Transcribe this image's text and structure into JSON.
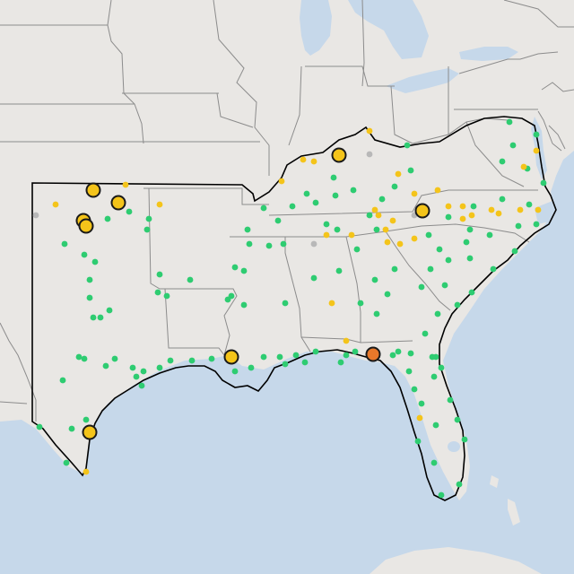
{
  "map": {
    "colors": {
      "land": "#e9e7e4",
      "water": "#c6d8ea",
      "state_border": "#8c8c8c",
      "region_outline": "#000000",
      "marker_outline": "#1a1a1a"
    },
    "categories": [
      {
        "key": "green",
        "color": "#2ecc71"
      },
      {
        "key": "yellow",
        "color": "#f4c41a"
      },
      {
        "key": "gray",
        "color": "#b8b8b8"
      },
      {
        "key": "orange",
        "color": "#e8782a"
      }
    ],
    "small_markers": {
      "green": [
        [
          568,
          136
        ],
        [
          572,
          162
        ],
        [
          598,
          150
        ],
        [
          560,
          180
        ],
        [
          588,
          188
        ],
        [
          606,
          204
        ],
        [
          590,
          228
        ],
        [
          560,
          222
        ],
        [
          528,
          230
        ],
        [
          524,
          256
        ],
        [
          500,
          242
        ],
        [
          478,
          262
        ],
        [
          490,
          278
        ],
        [
          520,
          270
        ],
        [
          546,
          262
        ],
        [
          578,
          252
        ],
        [
          598,
          250
        ],
        [
          574,
          280
        ],
        [
          550,
          300
        ],
        [
          524,
          288
        ],
        [
          500,
          290
        ],
        [
          480,
          300
        ],
        [
          470,
          320
        ],
        [
          496,
          318
        ],
        [
          526,
          326
        ],
        [
          510,
          340
        ],
        [
          488,
          350
        ],
        [
          474,
          372
        ],
        [
          458,
          394
        ],
        [
          482,
          398
        ],
        [
          484,
          420
        ],
        [
          462,
          434
        ],
        [
          470,
          450
        ],
        [
          502,
          446
        ],
        [
          510,
          468
        ],
        [
          486,
          474
        ],
        [
          466,
          492
        ],
        [
          518,
          490
        ],
        [
          484,
          516
        ],
        [
          512,
          540
        ],
        [
          492,
          552
        ],
        [
          454,
          162
        ],
        [
          458,
          190
        ],
        [
          440,
          208
        ],
        [
          426,
          222
        ],
        [
          412,
          240
        ],
        [
          420,
          256
        ],
        [
          398,
          278
        ],
        [
          376,
          256
        ],
        [
          364,
          250
        ],
        [
          352,
          226
        ],
        [
          342,
          216
        ],
        [
          372,
          198
        ],
        [
          374,
          218
        ],
        [
          394,
          212
        ],
        [
          326,
          230
        ],
        [
          310,
          246
        ],
        [
          294,
          232
        ],
        [
          300,
          274
        ],
        [
          316,
          272
        ],
        [
          276,
          256
        ],
        [
          278,
          272
        ],
        [
          272,
          302
        ],
        [
          262,
          298
        ],
        [
          254,
          334
        ],
        [
          272,
          340
        ],
        [
          318,
          338
        ],
        [
          350,
          310
        ],
        [
          378,
          302
        ],
        [
          402,
          338
        ],
        [
          418,
          312
        ],
        [
          440,
          300
        ],
        [
          432,
          328
        ],
        [
          420,
          350
        ],
        [
          396,
          392
        ],
        [
          380,
          404
        ],
        [
          352,
          392
        ],
        [
          330,
          396
        ],
        [
          312,
          398
        ],
        [
          294,
          398
        ],
        [
          280,
          410
        ],
        [
          262,
          414
        ],
        [
          236,
          400
        ],
        [
          214,
          402
        ],
        [
          190,
          402
        ],
        [
          178,
          410
        ],
        [
          160,
          414
        ],
        [
          148,
          410
        ],
        [
          152,
          420
        ],
        [
          128,
          400
        ],
        [
          118,
          408
        ],
        [
          94,
          400
        ],
        [
          88,
          398
        ],
        [
          70,
          424
        ],
        [
          158,
          430
        ],
        [
          96,
          468
        ],
        [
          80,
          478
        ],
        [
          44,
          476
        ],
        [
          74,
          516
        ],
        [
          106,
          292
        ],
        [
          100,
          312
        ],
        [
          100,
          332
        ],
        [
          112,
          354
        ],
        [
          122,
          346
        ],
        [
          104,
          354
        ],
        [
          176,
          326
        ],
        [
          186,
          330
        ],
        [
          212,
          312
        ],
        [
          178,
          306
        ],
        [
          258,
          330
        ],
        [
          166,
          244
        ],
        [
          164,
          256
        ],
        [
          144,
          236
        ],
        [
          120,
          244
        ],
        [
          94,
          284
        ],
        [
          72,
          272
        ],
        [
          318,
          406
        ],
        [
          340,
          404
        ],
        [
          386,
          396
        ],
        [
          438,
          396
        ],
        [
          444,
          392
        ],
        [
          456,
          414
        ],
        [
          486,
          398
        ],
        [
          492,
          410
        ]
      ],
      "yellow": [
        [
          412,
          146
        ],
        [
          338,
          178
        ],
        [
          350,
          180
        ],
        [
          314,
          202
        ],
        [
          444,
          194
        ],
        [
          462,
          216
        ],
        [
          488,
          212
        ],
        [
          500,
          230
        ],
        [
          516,
          230
        ],
        [
          526,
          240
        ],
        [
          548,
          234
        ],
        [
          556,
          238
        ],
        [
          580,
          234
        ],
        [
          600,
          234
        ],
        [
          516,
          244
        ],
        [
          438,
          246
        ],
        [
          430,
          256
        ],
        [
          462,
          266
        ],
        [
          446,
          272
        ],
        [
          432,
          270
        ],
        [
          392,
          262
        ],
        [
          364,
          262
        ],
        [
          418,
          234
        ],
        [
          422,
          240
        ],
        [
          598,
          168
        ],
        [
          584,
          186
        ],
        [
          140,
          206
        ],
        [
          178,
          228
        ],
        [
          62,
          228
        ],
        [
          370,
          338
        ],
        [
          386,
          380
        ],
        [
          468,
          466
        ],
        [
          96,
          526
        ]
      ],
      "gray": [
        [
          412,
          172
        ],
        [
          462,
          240
        ],
        [
          350,
          272
        ],
        [
          40,
          240
        ]
      ]
    },
    "large_markers": [
      {
        "cat": "yellow",
        "pos": [
          378,
          173
        ]
      },
      {
        "cat": "yellow",
        "pos": [
          104,
          212
        ]
      },
      {
        "cat": "yellow",
        "pos": [
          132,
          226
        ]
      },
      {
        "cat": "yellow",
        "pos": [
          93,
          246
        ]
      },
      {
        "cat": "yellow",
        "pos": [
          96,
          252
        ]
      },
      {
        "cat": "yellow",
        "pos": [
          471,
          235
        ]
      },
      {
        "cat": "yellow",
        "pos": [
          258,
          398
        ]
      },
      {
        "cat": "yellow",
        "pos": [
          100,
          482
        ]
      },
      {
        "cat": "orange",
        "pos": [
          416,
          395
        ]
      }
    ]
  }
}
